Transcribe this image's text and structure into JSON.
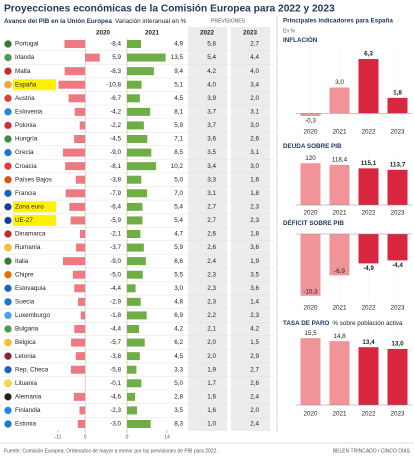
{
  "title": "Proyecciones económicas de la Comisión Europea para 2022 y 2023",
  "source": "Fuente: Comisión Europea. Ordenados de mayor a menor por las previsiones de PIB para 2022.",
  "credit": "BELÉN TRINCADO / CINCO DÍAS",
  "side_title": "Principales indicadores para España",
  "side_unit": "En %",
  "chart_data": [
    {
      "type": "table",
      "title": "Avance del PIB en la Unión Europea",
      "subtitle": "Variación interanual en %",
      "forecast_label": "PREVISIONES",
      "categories": [
        "Portugal",
        "Irlanda",
        "Malta",
        "España",
        "Austria",
        "Eslovenia",
        "Polonia",
        "Hungría",
        "Grecia",
        "Croacia",
        "Países Bajos",
        "Francia",
        "Zona euro",
        "UE-27",
        "Dinamarca",
        "Rumanía",
        "Italia",
        "Chipre",
        "Eslovaquia",
        "Suecia",
        "Luxemburgo",
        "Bulgaria",
        "Bélgica",
        "Letonia",
        "Rep. Checa",
        "Lituania",
        "Alemania",
        "Finlandia",
        "Estonia"
      ],
      "highlight": [
        3,
        12,
        13
      ],
      "series": [
        {
          "name": "2020",
          "color": "#ec7a80",
          "xlim": [
            -11,
            6
          ],
          "xticks": [
            -11,
            0
          ],
          "values": [
            -8.4,
            5.9,
            -8.3,
            -10.8,
            -6.7,
            -4.2,
            -2.2,
            -4.5,
            -9.0,
            -8.1,
            -3.8,
            -7.9,
            -6.4,
            -5.9,
            -2.1,
            -3.7,
            -9.0,
            -5.0,
            -4.4,
            -2.9,
            -1.8,
            -4.4,
            -5.7,
            -3.8,
            -5.8,
            -0.1,
            -4.6,
            -2.3,
            -3.0
          ],
          "value_labels": [
            "-8,4",
            "5,9",
            "-8,3",
            "-10,8",
            "-6,7",
            "-4,2",
            "-2,2",
            "-4,5",
            "-9,0",
            "-8,1",
            "-3,8",
            "-7,9",
            "-6,4",
            "-5,9",
            "-2,1",
            "-3,7",
            "-9,0",
            "-5,0",
            "-4,4",
            "-2,9",
            "-1,8",
            "-4,4",
            "-5,7",
            "-3,8",
            "-5,8",
            "-0,1",
            "-4,6",
            "-2,3",
            "-3,0"
          ]
        },
        {
          "name": "2021",
          "color": "#6fae45",
          "xlim": [
            0,
            14
          ],
          "xticks": [
            0,
            14
          ],
          "values": [
            4.9,
            13.5,
            9.4,
            5.1,
            4.5,
            8.1,
            5.9,
            7.1,
            8.5,
            10.2,
            5.0,
            7.0,
            5.4,
            5.4,
            4.7,
            5.9,
            6.6,
            5.5,
            3.0,
            4.8,
            6.9,
            4.2,
            6.2,
            4.5,
            3.3,
            5.0,
            2.8,
            3.5,
            8.3
          ],
          "value_labels": [
            "4,9",
            "13,5",
            "9,4",
            "5,1",
            "4,5",
            "8,1",
            "5,9",
            "7,1",
            "8,5",
            "10,2",
            "5,0",
            "7,0",
            "5,4",
            "5,4",
            "4,7",
            "5,9",
            "6,6",
            "5,5",
            "3,0",
            "4,8",
            "6,9",
            "4,2",
            "6,2",
            "4,5",
            "3,3",
            "5,0",
            "2,8",
            "3,5",
            "8,3"
          ]
        },
        {
          "name": "2022",
          "values": [
            5.8,
            5.4,
            4.2,
            4.0,
            3.9,
            3.7,
            3.7,
            3.6,
            3.5,
            3.4,
            3.3,
            3.1,
            2.7,
            2.7,
            2.6,
            2.6,
            2.4,
            2.3,
            2.3,
            2.3,
            2.2,
            2.1,
            2.0,
            2.0,
            1.9,
            1.7,
            1.6,
            1.6,
            1.0
          ],
          "value_labels": [
            "5,8",
            "5,4",
            "4,2",
            "4,0",
            "3,9",
            "3,7",
            "3,7",
            "3,6",
            "3,5",
            "3,4",
            "3,3",
            "3,1",
            "2,7",
            "2,7",
            "2,6",
            "2,6",
            "2,4",
            "2,3",
            "2,3",
            "2,3",
            "2,2",
            "2,1",
            "2,0",
            "2,0",
            "1,9",
            "1,7",
            "1,6",
            "1,6",
            "1,0"
          ]
        },
        {
          "name": "2023",
          "values": [
            2.7,
            4.4,
            4.0,
            3.4,
            2.0,
            3.1,
            3.0,
            2.6,
            3.1,
            3.0,
            1.6,
            1.8,
            2.3,
            2.3,
            1.8,
            3.6,
            1.9,
            3.5,
            3.6,
            1.4,
            2.3,
            4.2,
            1.5,
            2.9,
            2.7,
            2.6,
            2.4,
            2.0,
            2.4
          ],
          "value_labels": [
            "2,7",
            "4,4",
            "4,0",
            "3,4",
            "2,0",
            "3,1",
            "3,0",
            "2,6",
            "3,1",
            "3,0",
            "1,6",
            "1,8",
            "2,3",
            "2,3",
            "1,8",
            "3,6",
            "1,9",
            "3,5",
            "3,6",
            "1,4",
            "2,3",
            "4,2",
            "1,5",
            "2,9",
            "2,7",
            "2,6",
            "2,4",
            "2,0",
            "2,4"
          ]
        }
      ]
    },
    {
      "type": "bar",
      "title": "INFLACIÓN",
      "categories": [
        "2020",
        "2021",
        "2022",
        "2023"
      ],
      "values": [
        -0.3,
        3.0,
        6.3,
        1.8
      ],
      "value_labels": [
        "-0,3",
        "3,0",
        "6,3",
        "1,8"
      ],
      "colors": [
        "#f19499",
        "#f19499",
        "#d7263d",
        "#d7263d"
      ],
      "ylim": [
        -1,
        7
      ]
    },
    {
      "type": "bar",
      "title": "DEUDA SOBRE PIB",
      "categories": [
        "2020",
        "2021",
        "2022",
        "2023"
      ],
      "values": [
        120,
        118.4,
        115.1,
        113.7
      ],
      "value_labels": [
        "120",
        "118,4",
        "115,1",
        "113,7"
      ],
      "colors": [
        "#f19499",
        "#f19499",
        "#d7263d",
        "#d7263d"
      ],
      "ylim": [
        80,
        125
      ]
    },
    {
      "type": "bar",
      "title": "DÉFICIT SOBRE PIB",
      "categories": [
        "2020",
        "2021",
        "2022",
        "2023"
      ],
      "values": [
        -10.3,
        -6.9,
        -4.9,
        -4.4
      ],
      "value_labels": [
        "-10,3",
        "-6,9",
        "-4,9",
        "-4,4"
      ],
      "colors": [
        "#f19499",
        "#f19499",
        "#d7263d",
        "#d7263d"
      ],
      "ylim": [
        -11,
        0
      ]
    },
    {
      "type": "bar",
      "title": "TASA DE PARO",
      "subtitle": "% sobre población activa",
      "categories": [
        "2020",
        "2021",
        "2022",
        "2023"
      ],
      "values": [
        15.5,
        14.8,
        13.4,
        13.0
      ],
      "value_labels": [
        "15,5",
        "14,8",
        "13,4",
        "13,0"
      ],
      "colors": [
        "#f19499",
        "#f19499",
        "#d7263d",
        "#d7263d"
      ],
      "ylim": [
        0,
        16
      ]
    }
  ]
}
